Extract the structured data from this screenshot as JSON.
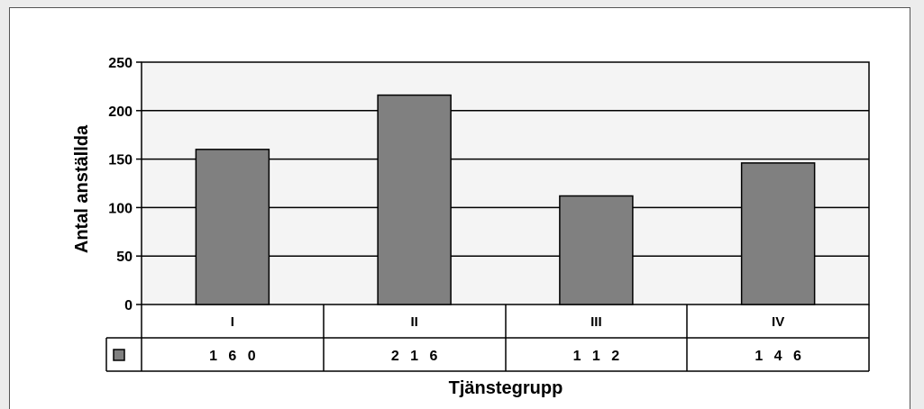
{
  "chart_data": {
    "type": "bar",
    "categories": [
      "I",
      "II",
      "III",
      "IV"
    ],
    "values": [
      160,
      216,
      112,
      146
    ],
    "value_labels": [
      "1 6 0",
      "2 1 6",
      "1 1 2",
      "1 4 6"
    ],
    "y_ticks": [
      "0",
      "50",
      "100",
      "150",
      "200",
      "250"
    ],
    "ylim": [
      0,
      250
    ],
    "xlabel": "Tjänstegrupp",
    "ylabel": "Antal anställda",
    "grid": true,
    "legend": "data-table",
    "colors": {
      "bar": "#808080",
      "bar_stroke": "#000000",
      "plot_bg": "#f4f4f4",
      "frame_bg": "#ffffff"
    }
  }
}
